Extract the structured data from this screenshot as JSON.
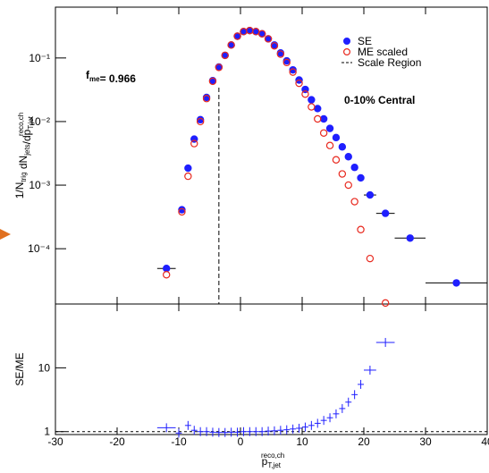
{
  "chart_data": [
    {
      "type": "scatter",
      "log_y": true,
      "legend": "upper right",
      "ylabel": [
        {
          "base": "1/N",
          "sub": "trig"
        },
        {
          "base": " dN",
          "sub": "jets"
        },
        {
          "base": "/dp",
          "sub": "T,jet",
          "sup": "reco,ch"
        }
      ],
      "annotations": [
        {
          "base": "f",
          "sub": "me",
          "text": "= 0.966"
        },
        {
          "text": "0-10% Central"
        }
      ],
      "xlim": [
        -30,
        40
      ],
      "xticks": [
        -30,
        -20,
        -10,
        0,
        10,
        20,
        30,
        40
      ],
      "ylim": [
        1.35e-05,
        0.63
      ],
      "yticks": [
        {
          "value": 0.0001,
          "label": "10⁻⁴"
        },
        {
          "value": 0.001,
          "label": "10⁻³"
        },
        {
          "value": 0.01,
          "label": "10⁻²"
        },
        {
          "value": 0.1,
          "label": "10⁻¹"
        }
      ],
      "scale_region": {
        "name": "Scale Region",
        "x": -3.5
      },
      "series": [
        {
          "name": "SE",
          "color": "#1f1fff",
          "marker": "filled",
          "x": [
            -12,
            -9.5,
            -8.5,
            -7.5,
            -6.5,
            -5.5,
            -4.5,
            -3.5,
            -2.5,
            -1.5,
            -0.5,
            0.5,
            1.5,
            2.5,
            3.5,
            4.5,
            5.5,
            6.5,
            7.5,
            8.5,
            9.5,
            10.5,
            11.5,
            12.5,
            13.5,
            14.5,
            15.5,
            16.5,
            17.5,
            18.5,
            19.5,
            21,
            23.5,
            27.5,
            35
          ],
          "xerr": [
            1.5,
            0.5,
            0.5,
            0.5,
            0.5,
            0.5,
            0.5,
            0.5,
            0.5,
            0.5,
            0.5,
            0.5,
            0.5,
            0.5,
            0.5,
            0.5,
            0.5,
            0.5,
            0.5,
            0.5,
            0.5,
            0.5,
            0.5,
            0.5,
            0.5,
            0.5,
            0.5,
            0.5,
            0.5,
            0.5,
            0.5,
            1,
            1.5,
            2.5,
            5
          ],
          "values": [
            4.9e-05,
            0.00041,
            0.00185,
            0.0053,
            0.0107,
            0.024,
            0.044,
            0.072,
            0.11,
            0.16,
            0.22,
            0.26,
            0.27,
            0.26,
            0.24,
            0.2,
            0.16,
            0.12,
            0.09,
            0.065,
            0.045,
            0.032,
            0.022,
            0.016,
            0.011,
            0.0078,
            0.0056,
            0.004,
            0.0028,
            0.0019,
            0.0013,
            0.0007,
            0.00036,
            0.000147,
            2.9e-05
          ]
        },
        {
          "name": "ME scaled",
          "color": "#e8281e",
          "marker": "open",
          "x": [
            -12,
            -9.5,
            -8.5,
            -7.5,
            -6.5,
            -5.5,
            -4.5,
            -3.5,
            -2.5,
            -1.5,
            -0.5,
            0.5,
            1.5,
            2.5,
            3.5,
            4.5,
            5.5,
            6.5,
            7.5,
            8.5,
            9.5,
            10.5,
            11.5,
            12.5,
            13.5,
            14.5,
            15.5,
            16.5,
            17.5,
            18.5,
            19.5,
            21,
            23.5
          ],
          "values": [
            3.9e-05,
            0.00038,
            0.00138,
            0.0045,
            0.01,
            0.023,
            0.043,
            0.071,
            0.11,
            0.16,
            0.22,
            0.26,
            0.27,
            0.26,
            0.24,
            0.2,
            0.155,
            0.115,
            0.085,
            0.06,
            0.04,
            0.027,
            0.017,
            0.011,
            0.0066,
            0.0042,
            0.0025,
            0.0015,
            0.001,
            0.00055,
            0.0002,
            7e-05,
            1.4e-05
          ]
        }
      ]
    },
    {
      "type": "scatter",
      "log_y": true,
      "ylabel": "SE/ME",
      "xlabel": {
        "base": "p",
        "sub": "T,jet",
        "sup": "reco,ch"
      },
      "xlim": [
        -30,
        40
      ],
      "xticks": [
        -30,
        -20,
        -10,
        0,
        10,
        20,
        30,
        40
      ],
      "ylim": [
        0.9,
        100
      ],
      "yticks": [
        1,
        10
      ],
      "reference": 1,
      "series": [
        {
          "color": "#1f1fff",
          "marker": "cross",
          "x": [
            -12,
            -10,
            -8.5,
            -7.5,
            -6.5,
            -5.5,
            -4.5,
            -3.5,
            -2.5,
            -1.5,
            -0.5,
            0.5,
            1.5,
            2.5,
            3.5,
            4.5,
            5.5,
            6.5,
            7.5,
            8.5,
            9.5,
            10.5,
            11.5,
            12.5,
            13.5,
            14.5,
            15.5,
            16.5,
            17.5,
            18.5,
            19.5,
            21,
            23.5
          ],
          "xerr": [
            1.5,
            0.5,
            0.5,
            0.5,
            0.5,
            0.5,
            0.5,
            0.5,
            0.5,
            0.5,
            0.5,
            0.5,
            0.5,
            0.5,
            0.5,
            0.5,
            0.5,
            0.5,
            0.5,
            0.5,
            0.5,
            0.5,
            0.5,
            0.5,
            0.5,
            0.5,
            0.5,
            0.5,
            0.5,
            0.5,
            0.5,
            1,
            1.5
          ],
          "values": [
            1.15,
            0.95,
            1.25,
            1.05,
            1.0,
            1.0,
            0.98,
            0.97,
            0.97,
            0.98,
            0.98,
            1.0,
            1.0,
            1.0,
            1.0,
            1.02,
            1.03,
            1.05,
            1.07,
            1.1,
            1.13,
            1.18,
            1.25,
            1.35,
            1.5,
            1.65,
            1.9,
            2.3,
            2.9,
            3.8,
            5.5,
            9.2,
            25
          ]
        }
      ]
    }
  ]
}
